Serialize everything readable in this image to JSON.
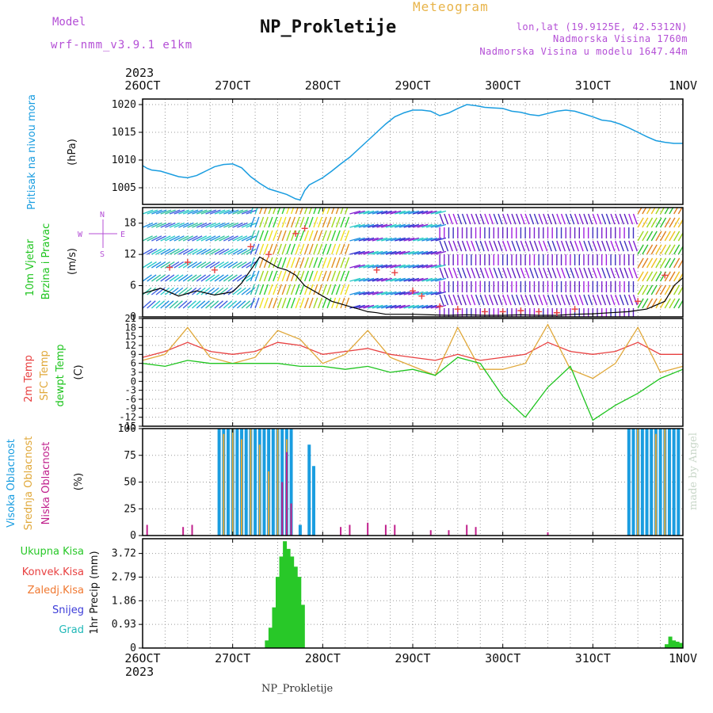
{
  "header": {
    "model_label": "Model",
    "model_version": "wrf-nmm_v3.9.1 e1km",
    "station": "NP_Prokletije",
    "meteogram": "Meteogram",
    "lonlat": "lon,lat (19.9125E, 42.5312N)",
    "elevation": "Nadmorska Visina 1760m",
    "model_elevation": "Nadmorska Visina u modelu 1647.44m",
    "year_top": "2023",
    "year_bottom": "2023",
    "footer": "NP_Prokletije",
    "credit": "made by Angel"
  },
  "colors": {
    "pressure": "#1a9de0",
    "wind_label": "#1ec41e",
    "temp2m": "#e84040",
    "sfc": "#e0a83a",
    "dewpt": "#1ec41e",
    "cloud_high": "#1a9de0",
    "cloud_mid": "#e0a83a",
    "cloud_low": "#c0208c",
    "precip": "#28c828",
    "convective": "#e84040",
    "freezing": "#f07830",
    "snow": "#3c3cd8",
    "graupel": "#20b8b8"
  },
  "chart_data": [
    {
      "panel": "pressure",
      "type": "line",
      "ylabel": [
        "Pritisak na nivou mora",
        "(hPa)"
      ],
      "x_categories": [
        "26OCT",
        "27OCT",
        "28OCT",
        "29OCT",
        "30OCT",
        "31OCT",
        "1NOV"
      ],
      "ylim": [
        1002,
        1021
      ],
      "yticks": [
        1005,
        1010,
        1015,
        1020
      ],
      "x": [
        0,
        0.05,
        0.1,
        0.2,
        0.3,
        0.4,
        0.5,
        0.6,
        0.7,
        0.8,
        0.9,
        1.0,
        1.1,
        1.2,
        1.3,
        1.4,
        1.5,
        1.6,
        1.7,
        1.75,
        1.8,
        1.85,
        2.0,
        2.1,
        2.2,
        2.3,
        2.4,
        2.5,
        2.6,
        2.7,
        2.8,
        2.9,
        3.0,
        3.1,
        3.2,
        3.3,
        3.4,
        3.5,
        3.6,
        3.7,
        3.8,
        3.9,
        4.0,
        4.1,
        4.2,
        4.3,
        4.4,
        4.5,
        4.6,
        4.7,
        4.8,
        4.9,
        5.0,
        5.1,
        5.2,
        5.3,
        5.4,
        5.5,
        5.6,
        5.7,
        5.8,
        5.9,
        6.0
      ],
      "y": [
        1009,
        1008.5,
        1008.2,
        1008.0,
        1007.5,
        1007.0,
        1006.8,
        1007.2,
        1008.0,
        1008.8,
        1009.2,
        1009.3,
        1008.6,
        1007.0,
        1005.8,
        1004.8,
        1004.3,
        1003.8,
        1003.0,
        1002.8,
        1004.5,
        1005.5,
        1006.8,
        1008.0,
        1009.3,
        1010.5,
        1012.0,
        1013.5,
        1015.0,
        1016.5,
        1017.8,
        1018.5,
        1019.0,
        1019.0,
        1018.8,
        1018.0,
        1018.5,
        1019.3,
        1020.0,
        1019.8,
        1019.5,
        1019.4,
        1019.3,
        1018.8,
        1018.6,
        1018.2,
        1018.0,
        1018.4,
        1018.8,
        1019.0,
        1018.8,
        1018.3,
        1017.8,
        1017.2,
        1017.0,
        1016.5,
        1015.8,
        1015.0,
        1014.2,
        1013.5,
        1013.2,
        1013.0,
        1013.0
      ]
    },
    {
      "panel": "wind",
      "type": "line",
      "ylabel": [
        "10m Vjetar",
        "Brzina i Pravac",
        "(m/s)"
      ],
      "compass": {
        "n": "N",
        "s": "S",
        "e": "E",
        "w": "W"
      },
      "ylim": [
        0,
        21
      ],
      "yticks": [
        0,
        6,
        12,
        18
      ],
      "x_categories": [
        "26OCT",
        "27OCT",
        "28OCT",
        "29OCT",
        "30OCT",
        "31OCT",
        "1NOV"
      ],
      "speed_x": [
        0,
        0.2,
        0.4,
        0.6,
        0.8,
        1.0,
        1.1,
        1.2,
        1.3,
        1.4,
        1.5,
        1.6,
        1.7,
        1.8,
        1.9,
        2.0,
        2.1,
        2.2,
        2.3,
        2.4,
        2.5,
        2.6,
        2.7,
        2.8,
        2.9,
        3.0,
        3.2,
        3.4,
        3.6,
        3.8,
        4.0,
        4.2,
        4.4,
        4.6,
        4.8,
        5.0,
        5.2,
        5.4,
        5.6,
        5.8,
        5.9,
        6.0
      ],
      "speed_y": [
        4.5,
        5.5,
        4.0,
        5.0,
        4.2,
        4.8,
        6.5,
        9.0,
        11.5,
        10.5,
        9.5,
        9.0,
        8.0,
        6.0,
        5.0,
        4.0,
        3.0,
        2.5,
        2.0,
        1.5,
        1.0,
        0.8,
        0.5,
        0.5,
        0.5,
        0.5,
        0.4,
        0.3,
        0.4,
        0.3,
        0.3,
        0.4,
        0.3,
        0.3,
        0.5,
        0.6,
        0.8,
        1.0,
        1.5,
        3.0,
        6.0,
        7.5
      ],
      "gust_x": [
        0.3,
        0.5,
        0.8,
        1.2,
        1.4,
        1.7,
        1.8,
        2.6,
        2.8,
        3.0,
        3.1,
        3.3,
        3.5,
        3.8,
        4.0,
        4.2,
        4.4,
        4.6,
        4.8,
        5.5,
        5.8
      ],
      "gust_y": [
        9.5,
        10.5,
        9.0,
        13.5,
        12.0,
        16.0,
        17.0,
        9.0,
        8.5,
        5.0,
        4.0,
        2.0,
        1.5,
        1.0,
        1.0,
        1.2,
        1.0,
        0.8,
        1.5,
        3.0,
        8.0
      ]
    },
    {
      "panel": "temperature",
      "type": "line",
      "ylabel": [
        "2m Temp",
        "SFC Temp",
        "dewpt Temp",
        "(C)"
      ],
      "ylim": [
        -15,
        21
      ],
      "yticks": [
        -15,
        -12,
        -9,
        -6,
        -3,
        0,
        3,
        6,
        9,
        12,
        15,
        18,
        21
      ],
      "x_categories": [
        "26OCT",
        "27OCT",
        "28OCT",
        "29OCT",
        "30OCT",
        "31OCT",
        "1NOV"
      ],
      "series": [
        {
          "name": "2m Temp",
          "x": [
            0,
            0.25,
            0.5,
            0.75,
            1.0,
            1.25,
            1.5,
            1.75,
            2.0,
            2.25,
            2.5,
            2.75,
            3.0,
            3.25,
            3.5,
            3.75,
            4.0,
            4.25,
            4.5,
            4.75,
            5.0,
            5.25,
            5.5,
            5.75,
            6.0
          ],
          "y": [
            8,
            10,
            13,
            10,
            9,
            10,
            13,
            12,
            9,
            10,
            11,
            9,
            8,
            7,
            9,
            7,
            8,
            9,
            13,
            10,
            9,
            10,
            13,
            9,
            9
          ]
        },
        {
          "name": "SFC Temp",
          "x": [
            0,
            0.25,
            0.5,
            0.75,
            1.0,
            1.25,
            1.5,
            1.75,
            2.0,
            2.25,
            2.5,
            2.75,
            3.0,
            3.25,
            3.5,
            3.75,
            4.0,
            4.25,
            4.5,
            4.75,
            5.0,
            5.25,
            5.5,
            5.75,
            6.0
          ],
          "y": [
            7,
            9,
            18,
            8,
            6,
            8,
            17,
            14,
            6,
            9,
            17,
            8,
            5,
            2,
            18,
            4,
            4,
            6,
            19,
            4,
            1,
            6,
            18,
            3,
            5
          ]
        },
        {
          "name": "dewpt Temp",
          "x": [
            0,
            0.25,
            0.5,
            0.75,
            1.0,
            1.25,
            1.5,
            1.75,
            2.0,
            2.25,
            2.5,
            2.75,
            3.0,
            3.25,
            3.5,
            3.75,
            4.0,
            4.25,
            4.5,
            4.75,
            5.0,
            5.25,
            5.5,
            5.75,
            6.0
          ],
          "y": [
            6,
            5,
            7,
            6,
            6,
            6,
            6,
            5,
            5,
            4,
            5,
            3,
            4,
            2,
            8,
            6,
            -5,
            -12,
            -2,
            5,
            -13,
            -8,
            -4,
            1,
            4
          ]
        }
      ]
    },
    {
      "panel": "clouds",
      "type": "bar",
      "ylabel": [
        "Visoka Oblacnost",
        "Srednja Oblacnost",
        "Niska Oblacnost",
        "(%)"
      ],
      "ylim": [
        0,
        100
      ],
      "yticks": [
        0,
        25,
        50,
        75,
        100
      ],
      "x_categories": [
        "26OCT",
        "27OCT",
        "28OCT",
        "29OCT",
        "30OCT",
        "31OCT",
        "1NOV"
      ],
      "series": [
        {
          "name": "Visoka Oblacnost",
          "x": [
            0.85,
            0.9,
            0.95,
            1.0,
            1.05,
            1.1,
            1.15,
            1.2,
            1.25,
            1.3,
            1.35,
            1.4,
            1.45,
            1.5,
            1.55,
            1.6,
            1.65,
            1.75,
            1.85,
            1.9,
            5.4,
            5.45,
            5.5,
            5.55,
            5.6,
            5.65,
            5.7,
            5.75,
            5.8,
            5.85,
            5.9,
            5.95
          ],
          "y": [
            100,
            100,
            100,
            100,
            100,
            100,
            100,
            100,
            100,
            100,
            100,
            100,
            100,
            100,
            100,
            100,
            100,
            10,
            85,
            65,
            100,
            100,
            100,
            100,
            100,
            100,
            100,
            100,
            100,
            100,
            100,
            100
          ]
        },
        {
          "name": "Srednja Oblacnost",
          "x": [
            0.9,
            1.0,
            1.1,
            1.2,
            1.3,
            1.4,
            1.5,
            1.6,
            1.65,
            5.5,
            5.7,
            5.8
          ],
          "y": [
            95,
            100,
            90,
            100,
            85,
            60,
            100,
            90,
            30,
            100,
            95,
            100
          ]
        },
        {
          "name": "Niska Oblacnost",
          "x": [
            0.05,
            0.45,
            0.55,
            1.55,
            1.6,
            1.65,
            2.2,
            2.3,
            2.5,
            2.7,
            2.8,
            3.2,
            3.4,
            3.6,
            3.7,
            4.5
          ],
          "y": [
            10,
            8,
            10,
            50,
            78,
            30,
            8,
            10,
            12,
            10,
            10,
            5,
            5,
            10,
            8,
            3
          ]
        }
      ]
    },
    {
      "panel": "precipitation",
      "type": "bar",
      "ylabel": [
        "1hr Precip (mm)"
      ],
      "legend": [
        "Ukupna Kisa",
        "Konvek.Kisa",
        "Zaledj.Kisa",
        "Snijeg",
        "Grad"
      ],
      "ylim": [
        0,
        4.3
      ],
      "yticks": [
        0,
        0.93,
        1.86,
        2.79,
        3.72
      ],
      "x_categories": [
        "26OCT",
        "27OCT",
        "28OCT",
        "29OCT",
        "30OCT",
        "31OCT",
        "1NOV"
      ],
      "x": [
        1.38,
        1.42,
        1.46,
        1.5,
        1.54,
        1.58,
        1.62,
        1.66,
        1.7,
        1.74,
        1.78,
        5.82,
        5.86,
        5.9,
        5.94,
        5.98
      ],
      "y": [
        0.3,
        0.8,
        1.6,
        2.8,
        3.6,
        4.2,
        3.9,
        3.6,
        3.2,
        2.8,
        1.7,
        0.15,
        0.45,
        0.3,
        0.25,
        0.2
      ]
    }
  ]
}
